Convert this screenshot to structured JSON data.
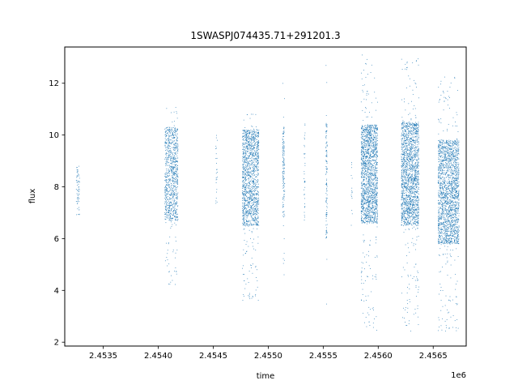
{
  "chart_data": {
    "type": "scatter",
    "title": "1SWASPJ074435.71+291201.3",
    "xlabel": "time",
    "ylabel": "flux",
    "x_offset_label": "1e6",
    "xlim": [
      2453150,
      2456800
    ],
    "ylim": [
      1.85,
      13.4
    ],
    "x_ticks": [
      2453500,
      2454000,
      2454500,
      2455000,
      2455500,
      2456000,
      2456500
    ],
    "x_tick_labels": [
      "2.4535",
      "2.4540",
      "2.4545",
      "2.4550",
      "2.4555",
      "2.4560",
      "2.4565"
    ],
    "y_ticks": [
      2,
      4,
      6,
      8,
      10,
      12
    ],
    "y_tick_labels": [
      "2",
      "4",
      "6",
      "8",
      "10",
      "12"
    ],
    "grid": false,
    "marker_color": "#1f77b4",
    "clusters": [
      {
        "x_center": 2453270,
        "x_halfwidth": 15,
        "y_lo": 6.6,
        "y_hi": 10.3,
        "y_core_lo": 6.9,
        "y_core_hi": 8.8,
        "density": 60
      },
      {
        "x_center": 2454120,
        "x_halfwidth": 60,
        "y_lo": 4.2,
        "y_hi": 11.1,
        "y_core_lo": 6.7,
        "y_core_hi": 10.3,
        "density": 900
      },
      {
        "x_center": 2454530,
        "x_halfwidth": 8,
        "y_lo": 6.9,
        "y_hi": 11.0,
        "y_core_lo": 7.2,
        "y_core_hi": 10.0,
        "density": 25
      },
      {
        "x_center": 2454840,
        "x_halfwidth": 75,
        "y_lo": 3.4,
        "y_hi": 10.9,
        "y_core_lo": 6.5,
        "y_core_hi": 10.2,
        "density": 1400
      },
      {
        "x_center": 2455140,
        "x_halfwidth": 10,
        "y_lo": 3.2,
        "y_hi": 12.8,
        "y_core_lo": 6.8,
        "y_core_hi": 10.3,
        "density": 140
      },
      {
        "x_center": 2455530,
        "x_halfwidth": 6,
        "y_lo": 2.9,
        "y_hi": 13.0,
        "y_core_lo": 6.0,
        "y_core_hi": 10.5,
        "density": 120
      },
      {
        "x_center": 2455330,
        "x_halfwidth": 5,
        "y_lo": 5.0,
        "y_hi": 13.0,
        "y_core_lo": 6.5,
        "y_core_hi": 10.5,
        "density": 35
      },
      {
        "x_center": 2455760,
        "x_halfwidth": 5,
        "y_lo": 5.5,
        "y_hi": 9.2,
        "y_core_lo": 6.5,
        "y_core_hi": 9.0,
        "density": 15
      },
      {
        "x_center": 2455920,
        "x_halfwidth": 75,
        "y_lo": 2.4,
        "y_hi": 13.1,
        "y_core_lo": 6.6,
        "y_core_hi": 10.4,
        "density": 1700
      },
      {
        "x_center": 2456290,
        "x_halfwidth": 80,
        "y_lo": 2.4,
        "y_hi": 13.0,
        "y_core_lo": 6.5,
        "y_core_hi": 10.5,
        "density": 1800
      },
      {
        "x_center": 2456640,
        "x_halfwidth": 95,
        "y_lo": 2.4,
        "y_hi": 12.3,
        "y_core_lo": 5.8,
        "y_core_hi": 9.8,
        "density": 2000
      }
    ]
  }
}
